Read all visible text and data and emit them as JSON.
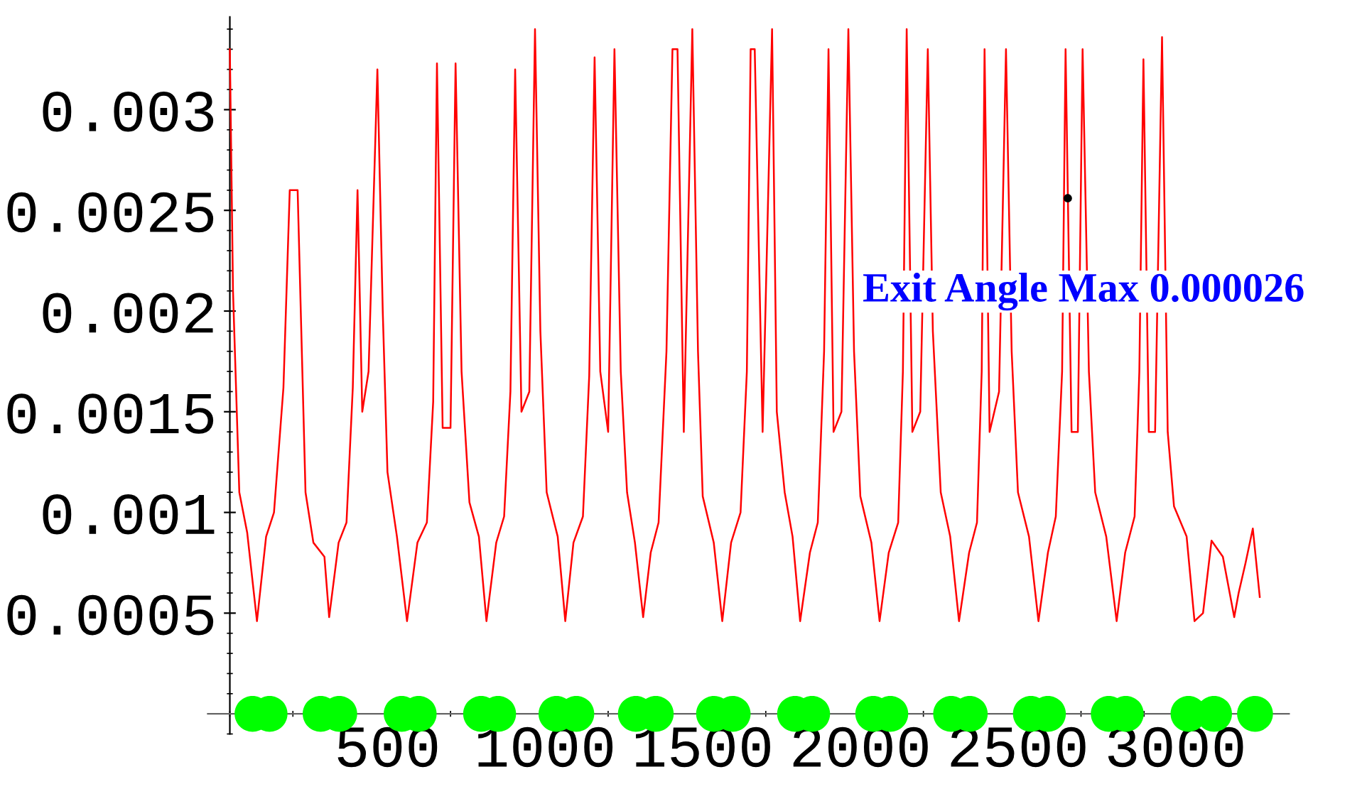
{
  "chart_data": {
    "type": "line",
    "xlim": [
      -70,
      3360
    ],
    "ylim": [
      -0.0001,
      0.00346
    ],
    "xticks": [
      500,
      1000,
      1500,
      2000,
      2500,
      3000
    ],
    "yticks": [
      0.0005,
      0.001,
      0.0015,
      0.002,
      0.0025,
      0.003
    ],
    "grid": false,
    "legend": false,
    "annotations": [
      "Exit Angle Max 0.000026"
    ],
    "series": [
      {
        "color": "#ff0000",
        "x": [
          0,
          10,
          30,
          55,
          86,
          115,
          140,
          170,
          190,
          215,
          240,
          265,
          300,
          315,
          345,
          370,
          390,
          405,
          420,
          440,
          468,
          485,
          500,
          530,
          562,
          595,
          625,
          645,
          657,
          675,
          700,
          716,
          735,
          760,
          790,
          814,
          845,
          870,
          890,
          905,
          925,
          950,
          968,
          985,
          1005,
          1040,
          1064,
          1090,
          1120,
          1140,
          1157,
          1175,
          1200,
          1220,
          1240,
          1260,
          1285,
          1311,
          1335,
          1360,
          1385,
          1404,
          1420,
          1440,
          1467,
          1485,
          1500,
          1535,
          1562,
          1590,
          1620,
          1640,
          1652,
          1665,
          1690,
          1720,
          1735,
          1760,
          1785,
          1809,
          1840,
          1865,
          1885,
          1899,
          1915,
          1940,
          1962,
          1980,
          2000,
          2035,
          2061,
          2090,
          2120,
          2135,
          2147,
          2165,
          2190,
          2214,
          2230,
          2255,
          2285,
          2313,
          2345,
          2370,
          2385,
          2394,
          2410,
          2440,
          2462,
          2480,
          2500,
          2535,
          2565,
          2595,
          2620,
          2640,
          2651,
          2670,
          2690,
          2705,
          2725,
          2745,
          2780,
          2813,
          2840,
          2870,
          2885,
          2898,
          2915,
          2935,
          2957,
          2975,
          2995,
          3035,
          3060,
          3087,
          3114,
          3150,
          3186,
          3200,
          3222,
          3245,
          3267
        ],
        "values": [
          0.0033,
          0.0021,
          0.0011,
          0.0009,
          0.00046,
          0.00088,
          0.001,
          0.00162,
          0.0026,
          0.0026,
          0.0011,
          0.00085,
          0.00078,
          0.00048,
          0.00085,
          0.00095,
          0.00162,
          0.0026,
          0.0015,
          0.0017,
          0.0032,
          0.002,
          0.0012,
          0.00088,
          0.00046,
          0.00085,
          0.00095,
          0.00155,
          0.00323,
          0.00142,
          0.00142,
          0.00323,
          0.0017,
          0.00105,
          0.00088,
          0.00046,
          0.00085,
          0.00098,
          0.0016,
          0.0032,
          0.0015,
          0.0016,
          0.0034,
          0.0019,
          0.0011,
          0.00088,
          0.00046,
          0.00085,
          0.00098,
          0.00168,
          0.00326,
          0.0017,
          0.0014,
          0.0033,
          0.0017,
          0.0011,
          0.00085,
          0.00048,
          0.0008,
          0.00095,
          0.0018,
          0.0033,
          0.0033,
          0.0014,
          0.0034,
          0.0018,
          0.00108,
          0.00085,
          0.00046,
          0.00085,
          0.001,
          0.0017,
          0.0033,
          0.0033,
          0.0014,
          0.0034,
          0.0015,
          0.0011,
          0.00088,
          0.00046,
          0.0008,
          0.00095,
          0.0018,
          0.0033,
          0.0014,
          0.0015,
          0.0034,
          0.0018,
          0.00108,
          0.00085,
          0.00046,
          0.0008,
          0.00095,
          0.0017,
          0.0034,
          0.0014,
          0.0015,
          0.0033,
          0.0019,
          0.0011,
          0.00088,
          0.00046,
          0.0008,
          0.00095,
          0.0017,
          0.0033,
          0.0014,
          0.0016,
          0.0033,
          0.0018,
          0.0011,
          0.00088,
          0.00046,
          0.0008,
          0.00098,
          0.0017,
          0.0033,
          0.0014,
          0.0014,
          0.0033,
          0.0017,
          0.0011,
          0.00088,
          0.00046,
          0.0008,
          0.00098,
          0.0017,
          0.00325,
          0.0014,
          0.0014,
          0.00336,
          0.0014,
          0.00103,
          0.00088,
          0.00046,
          0.0005,
          0.00086,
          0.00078,
          0.00048,
          0.0006,
          0.00075,
          0.00092,
          0.00058
        ]
      },
      {
        "type": "scatter",
        "color": "#00ff00",
        "x": [
          72,
          126,
          288,
          347,
          545,
          599,
          797,
          851,
          1036,
          1099,
          1288,
          1351,
          1536,
          1595,
          1793,
          1847,
          2041,
          2095,
          2288,
          2347,
          2541,
          2595,
          2788,
          2842,
          3041,
          3122,
          3252
        ],
        "values": [
          0,
          0,
          0,
          0,
          0,
          0,
          0,
          0,
          0,
          0,
          0,
          0,
          0,
          0,
          0,
          0,
          0,
          0,
          0,
          0,
          0,
          0,
          0,
          0,
          0,
          0,
          0
        ]
      },
      {
        "type": "scatter",
        "color": "#000000",
        "x": [
          2658
        ],
        "values": [
          0.00256
        ]
      }
    ]
  }
}
